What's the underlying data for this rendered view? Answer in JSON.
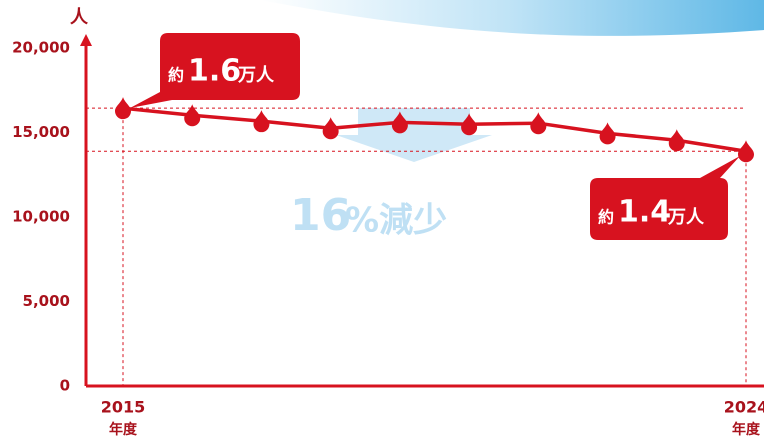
{
  "chart_data": {
    "type": "line",
    "y_unit": "人",
    "x_unit": "年度",
    "categories": [
      "2015",
      null,
      null,
      null,
      null,
      null,
      null,
      null,
      null,
      "2024"
    ],
    "series": [
      {
        "color": "#d7121f",
        "values": [
          16440,
          16020,
          15670,
          15250,
          15600,
          15490,
          15550,
          14950,
          14540,
          13890
        ]
      }
    ],
    "ylim": [
      0,
      20000
    ],
    "yticks": [
      0,
      {
        "value": 5000,
        "label": "5,000"
      },
      {
        "value": 10000,
        "label": "10,000"
      },
      {
        "value": 15000,
        "label": "15,000"
      },
      {
        "value": 20000,
        "label": "20,000"
      }
    ],
    "annotations": {
      "start": {
        "prefix": "約",
        "number": "1.6",
        "unit": "万人"
      },
      "end": {
        "prefix": "約",
        "number": "1.4",
        "unit": "万人"
      },
      "change": {
        "number": "16",
        "unit": "%減少"
      }
    }
  }
}
